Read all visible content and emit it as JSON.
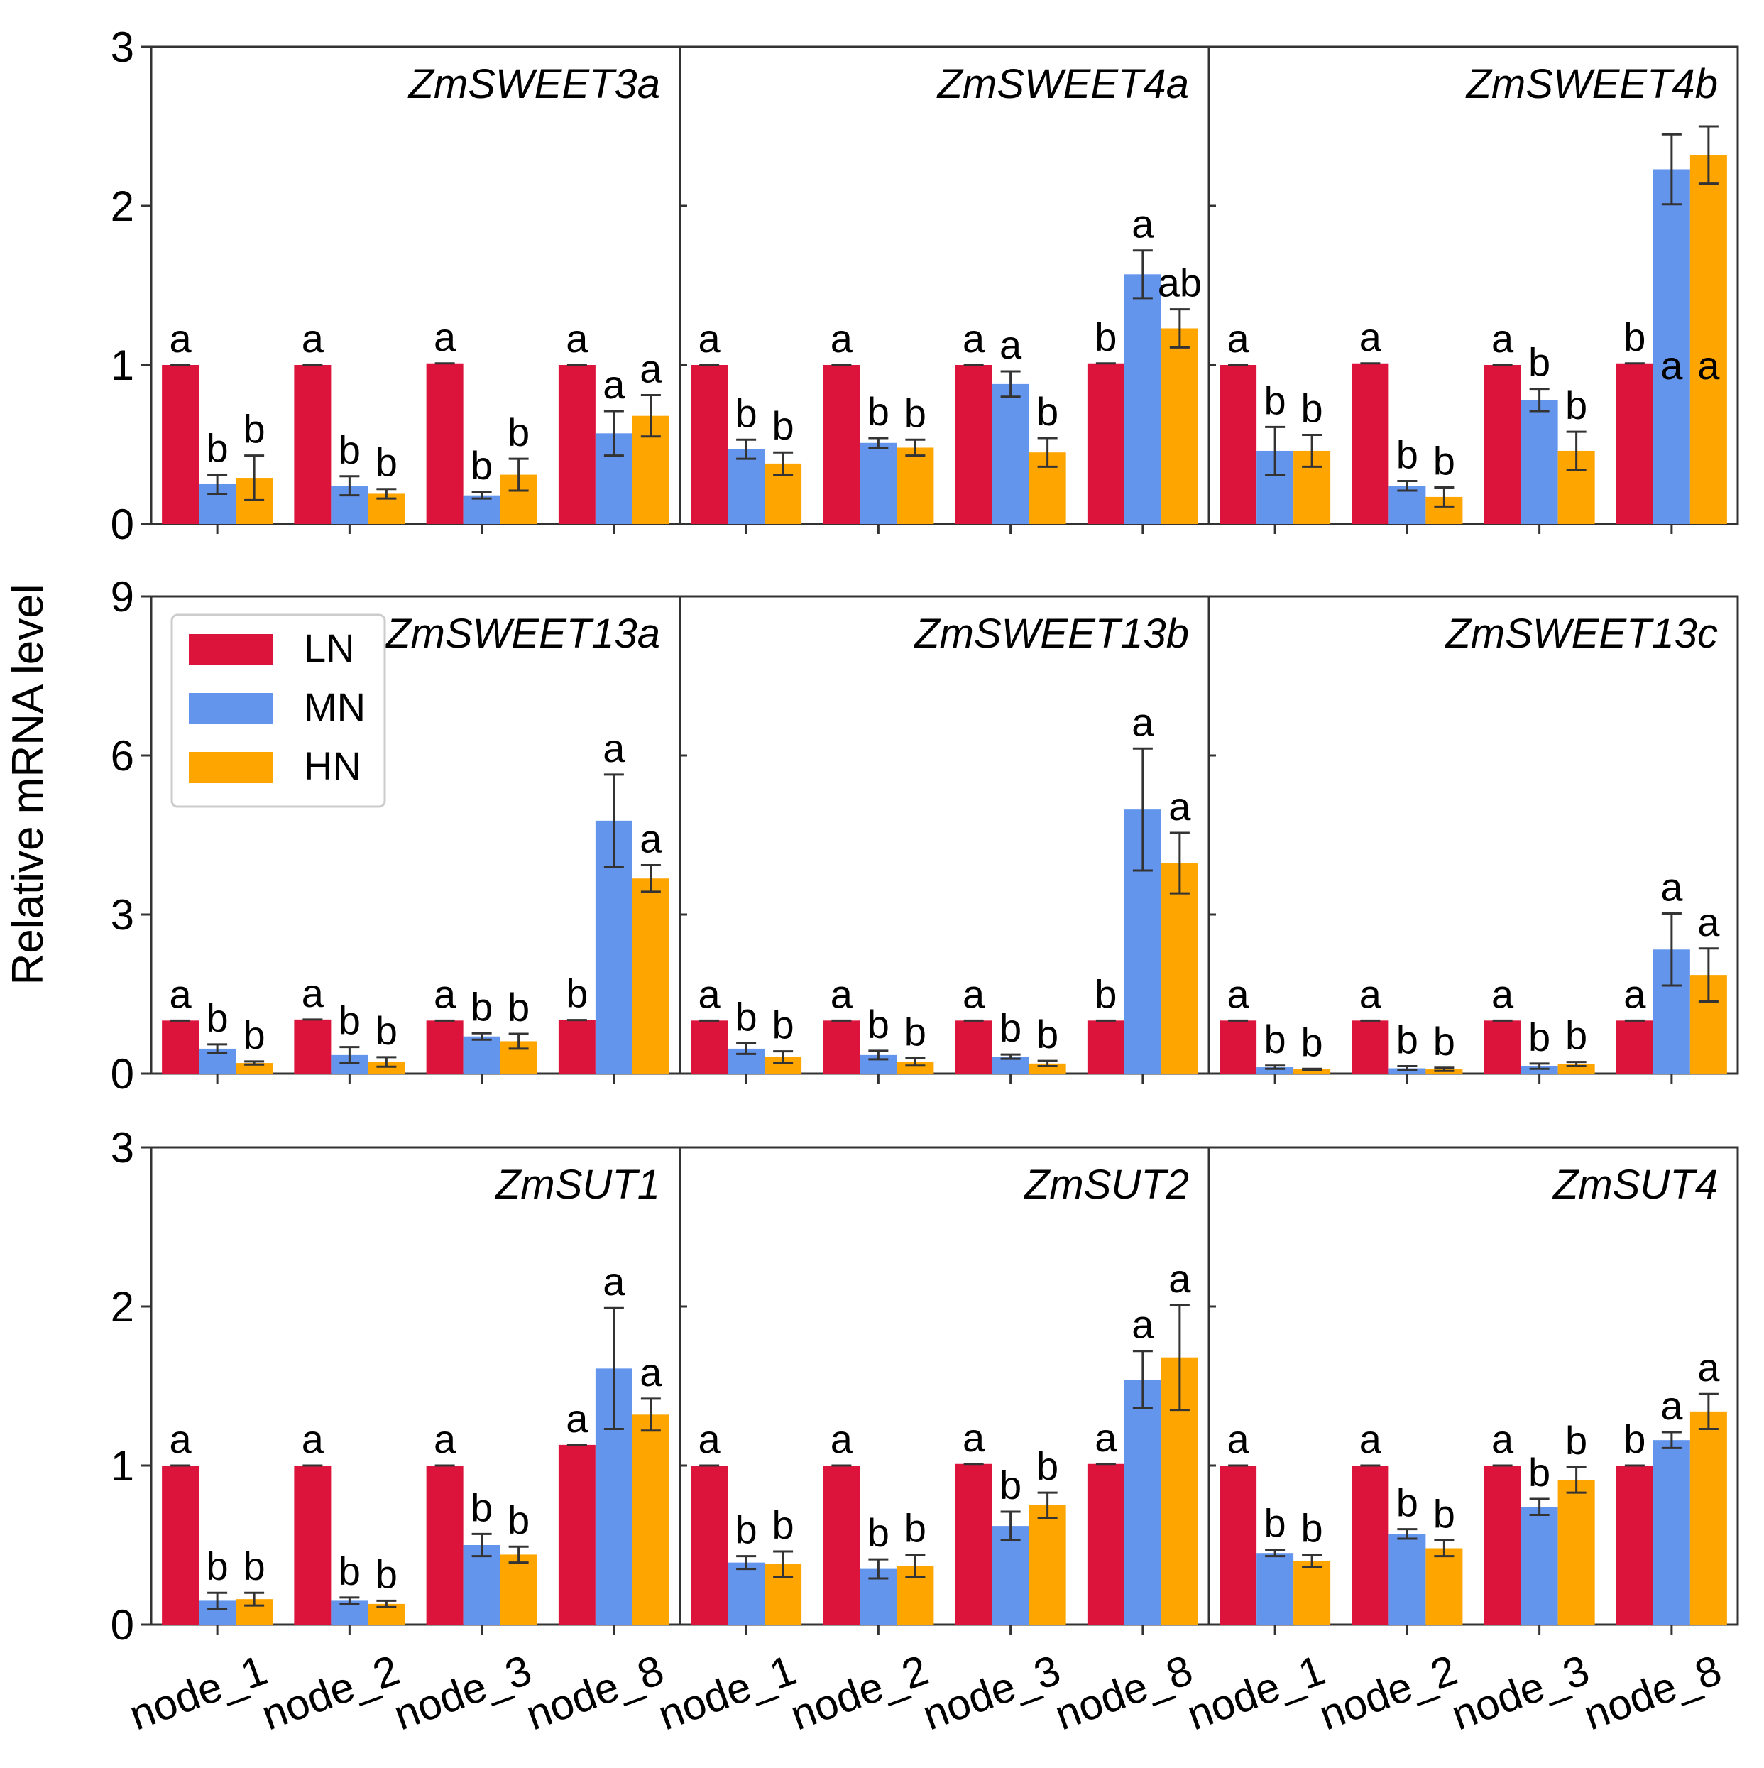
{
  "chart_data": {
    "type": "bar",
    "ylabel": "Relative mRNA level",
    "categories": [
      "node_1",
      "node_2",
      "node_3",
      "node_8"
    ],
    "legend": [
      {
        "name": "LN",
        "color": "#DC143C"
      },
      {
        "name": "MN",
        "color": "#6495ED"
      },
      {
        "name": "HN",
        "color": "#FFA500"
      }
    ],
    "legend_position": "top-left of middle-left panel",
    "rows": [
      {
        "ylim": [
          0,
          3
        ],
        "yticks": [
          "0",
          "1",
          "2",
          "3"
        ]
      },
      {
        "ylim": [
          0,
          9
        ],
        "yticks": [
          "0",
          "3",
          "6",
          "9"
        ]
      },
      {
        "ylim": [
          0,
          3
        ],
        "yticks": [
          "0",
          "1",
          "2",
          "3"
        ]
      }
    ],
    "panels": [
      {
        "title": "ZmSWEET3a",
        "row": 0,
        "col": 0,
        "values": [
          [
            1.0,
            0.25,
            0.29
          ],
          [
            1.0,
            0.24,
            0.19
          ],
          [
            1.01,
            0.18,
            0.31
          ],
          [
            1.0,
            0.57,
            0.68
          ]
        ],
        "errors": [
          [
            0,
            0.06,
            0.14
          ],
          [
            0,
            0.06,
            0.03
          ],
          [
            0,
            0.02,
            0.1
          ],
          [
            0,
            0.14,
            0.13
          ]
        ],
        "labels": [
          [
            "a",
            "b",
            "b"
          ],
          [
            "a",
            "b",
            "b"
          ],
          [
            "a",
            "b",
            "b"
          ],
          [
            "a",
            "a",
            "a"
          ]
        ]
      },
      {
        "title": "ZmSWEET4a",
        "row": 0,
        "col": 1,
        "values": [
          [
            1.0,
            0.47,
            0.38
          ],
          [
            1.0,
            0.51,
            0.48
          ],
          [
            1.0,
            0.88,
            0.45
          ],
          [
            1.01,
            1.57,
            1.23
          ]
        ],
        "errors": [
          [
            0,
            0.06,
            0.07
          ],
          [
            0,
            0.03,
            0.05
          ],
          [
            0,
            0.08,
            0.09
          ],
          [
            0,
            0.15,
            0.12
          ]
        ],
        "labels": [
          [
            "a",
            "b",
            "b"
          ],
          [
            "a",
            "b",
            "b"
          ],
          [
            "a",
            "a",
            "b"
          ],
          [
            "b",
            "a",
            "ab"
          ]
        ]
      },
      {
        "title": "ZmSWEET4b",
        "row": 0,
        "col": 2,
        "values": [
          [
            1.0,
            0.46,
            0.46
          ],
          [
            1.01,
            0.24,
            0.17
          ],
          [
            1.0,
            0.78,
            0.46
          ],
          [
            1.01,
            2.23,
            2.32
          ]
        ],
        "errors": [
          [
            0,
            0.15,
            0.1
          ],
          [
            0,
            0.03,
            0.06
          ],
          [
            0,
            0.07,
            0.12
          ],
          [
            0,
            0.22,
            0.18
          ]
        ],
        "labels": [
          [
            "a",
            "b",
            "b"
          ],
          [
            "a",
            "b",
            "b"
          ],
          [
            "a",
            "b",
            "b"
          ],
          [
            "b",
            "a",
            "a"
          ]
        ]
      },
      {
        "title": "ZmSWEET13a",
        "row": 1,
        "col": 0,
        "values": [
          [
            1.0,
            0.47,
            0.2
          ],
          [
            1.02,
            0.35,
            0.22
          ],
          [
            1.0,
            0.7,
            0.61
          ],
          [
            1.01,
            4.77,
            3.68
          ]
        ],
        "errors": [
          [
            0,
            0.08,
            0.03
          ],
          [
            0,
            0.15,
            0.09
          ],
          [
            0,
            0.06,
            0.14
          ],
          [
            0,
            0.87,
            0.25
          ]
        ],
        "labels": [
          [
            "a",
            "b",
            "b"
          ],
          [
            "a",
            "b",
            "b"
          ],
          [
            "a",
            "b",
            "b"
          ],
          [
            "b",
            "a",
            "a"
          ]
        ]
      },
      {
        "title": "ZmSWEET13b",
        "row": 1,
        "col": 1,
        "values": [
          [
            1.0,
            0.47,
            0.31
          ],
          [
            1.0,
            0.35,
            0.22
          ],
          [
            1.0,
            0.32,
            0.19
          ],
          [
            1.0,
            4.98,
            3.97
          ]
        ],
        "errors": [
          [
            0,
            0.1,
            0.11
          ],
          [
            0,
            0.08,
            0.07
          ],
          [
            0,
            0.04,
            0.05
          ],
          [
            0,
            1.15,
            0.57
          ]
        ],
        "labels": [
          [
            "a",
            "b",
            "b"
          ],
          [
            "a",
            "b",
            "b"
          ],
          [
            "a",
            "b",
            "b"
          ],
          [
            "b",
            "a",
            "a"
          ]
        ]
      },
      {
        "title": "ZmSWEET13c",
        "row": 1,
        "col": 2,
        "values": [
          [
            1.0,
            0.12,
            0.08
          ],
          [
            1.0,
            0.1,
            0.08
          ],
          [
            1.0,
            0.14,
            0.18
          ],
          [
            1.0,
            2.34,
            1.86
          ]
        ],
        "errors": [
          [
            0,
            0.03,
            0.01
          ],
          [
            0,
            0.04,
            0.03
          ],
          [
            0,
            0.05,
            0.04
          ],
          [
            0,
            0.68,
            0.5
          ]
        ],
        "labels": [
          [
            "a",
            "b",
            "b"
          ],
          [
            "a",
            "b",
            "b"
          ],
          [
            "a",
            "b",
            "b"
          ],
          [
            "a",
            "a",
            "a"
          ]
        ]
      },
      {
        "title": "ZmSUT1",
        "row": 2,
        "col": 0,
        "values": [
          [
            1.0,
            0.15,
            0.16
          ],
          [
            1.0,
            0.15,
            0.13
          ],
          [
            1.0,
            0.5,
            0.44
          ],
          [
            1.13,
            1.61,
            1.32
          ]
        ],
        "errors": [
          [
            0,
            0.05,
            0.04
          ],
          [
            0,
            0.02,
            0.02
          ],
          [
            0,
            0.07,
            0.05
          ],
          [
            0,
            0.38,
            0.1
          ]
        ],
        "labels": [
          [
            "a",
            "b",
            "b"
          ],
          [
            "a",
            "b",
            "b"
          ],
          [
            "a",
            "b",
            "b"
          ],
          [
            "a",
            "a",
            "a"
          ]
        ]
      },
      {
        "title": "ZmSUT2",
        "row": 2,
        "col": 1,
        "values": [
          [
            1.0,
            0.39,
            0.38
          ],
          [
            1.0,
            0.35,
            0.37
          ],
          [
            1.01,
            0.62,
            0.75
          ],
          [
            1.01,
            1.54,
            1.68
          ]
        ],
        "errors": [
          [
            0,
            0.04,
            0.08
          ],
          [
            0,
            0.06,
            0.07
          ],
          [
            0,
            0.09,
            0.08
          ],
          [
            0,
            0.18,
            0.33
          ]
        ],
        "labels": [
          [
            "a",
            "b",
            "b"
          ],
          [
            "a",
            "b",
            "b"
          ],
          [
            "a",
            "b",
            "b"
          ],
          [
            "a",
            "a",
            "a"
          ]
        ]
      },
      {
        "title": "ZmSUT4",
        "row": 2,
        "col": 2,
        "values": [
          [
            1.0,
            0.45,
            0.4
          ],
          [
            1.0,
            0.57,
            0.48
          ],
          [
            1.0,
            0.74,
            0.91
          ],
          [
            1.0,
            1.16,
            1.34
          ]
        ],
        "errors": [
          [
            0,
            0.02,
            0.04
          ],
          [
            0,
            0.03,
            0.05
          ],
          [
            0,
            0.05,
            0.08
          ],
          [
            0,
            0.05,
            0.11
          ]
        ],
        "labels": [
          [
            "a",
            "b",
            "b"
          ],
          [
            "a",
            "b",
            "b"
          ],
          [
            "a",
            "b",
            "b"
          ],
          [
            "b",
            "a",
            "a"
          ]
        ]
      }
    ]
  }
}
